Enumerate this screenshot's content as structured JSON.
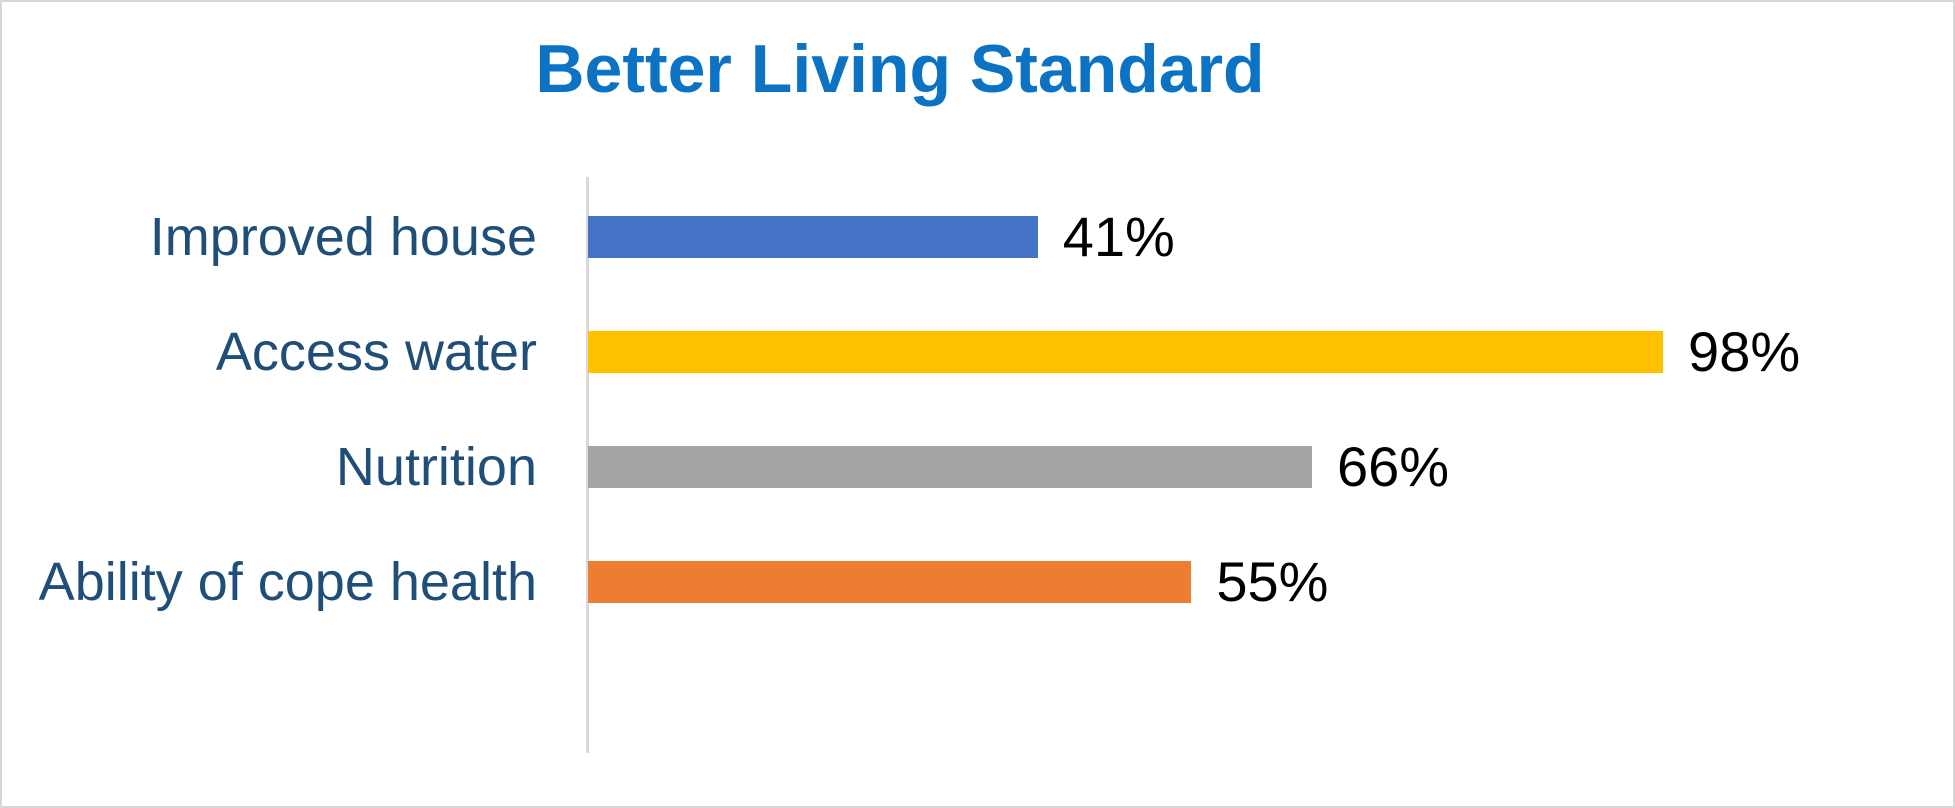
{
  "chart_data": {
    "type": "bar",
    "orientation": "horizontal",
    "title": "Better Living Standard",
    "xlabel": "",
    "ylabel": "",
    "xlim": [
      0,
      100
    ],
    "gridlines": false,
    "legend": "none",
    "categories": [
      "Improved house",
      "Access water",
      "Nutrition",
      "Ability of cope health"
    ],
    "values": [
      41,
      98,
      66,
      55
    ],
    "data_labels": [
      "41%",
      "98%",
      "66%",
      "55%"
    ],
    "bar_colors": [
      "#4472C4",
      "#FFC000",
      "#A5A5A5",
      "#ED7D31"
    ],
    "colors": {
      "title_text": "#0B72C4",
      "category_label_text": "#1F4E79",
      "data_label_text": "#000000",
      "axis_line": "#D9D9D9",
      "frame_border": "#D7D7D7",
      "background": "#FFFFFF"
    }
  }
}
